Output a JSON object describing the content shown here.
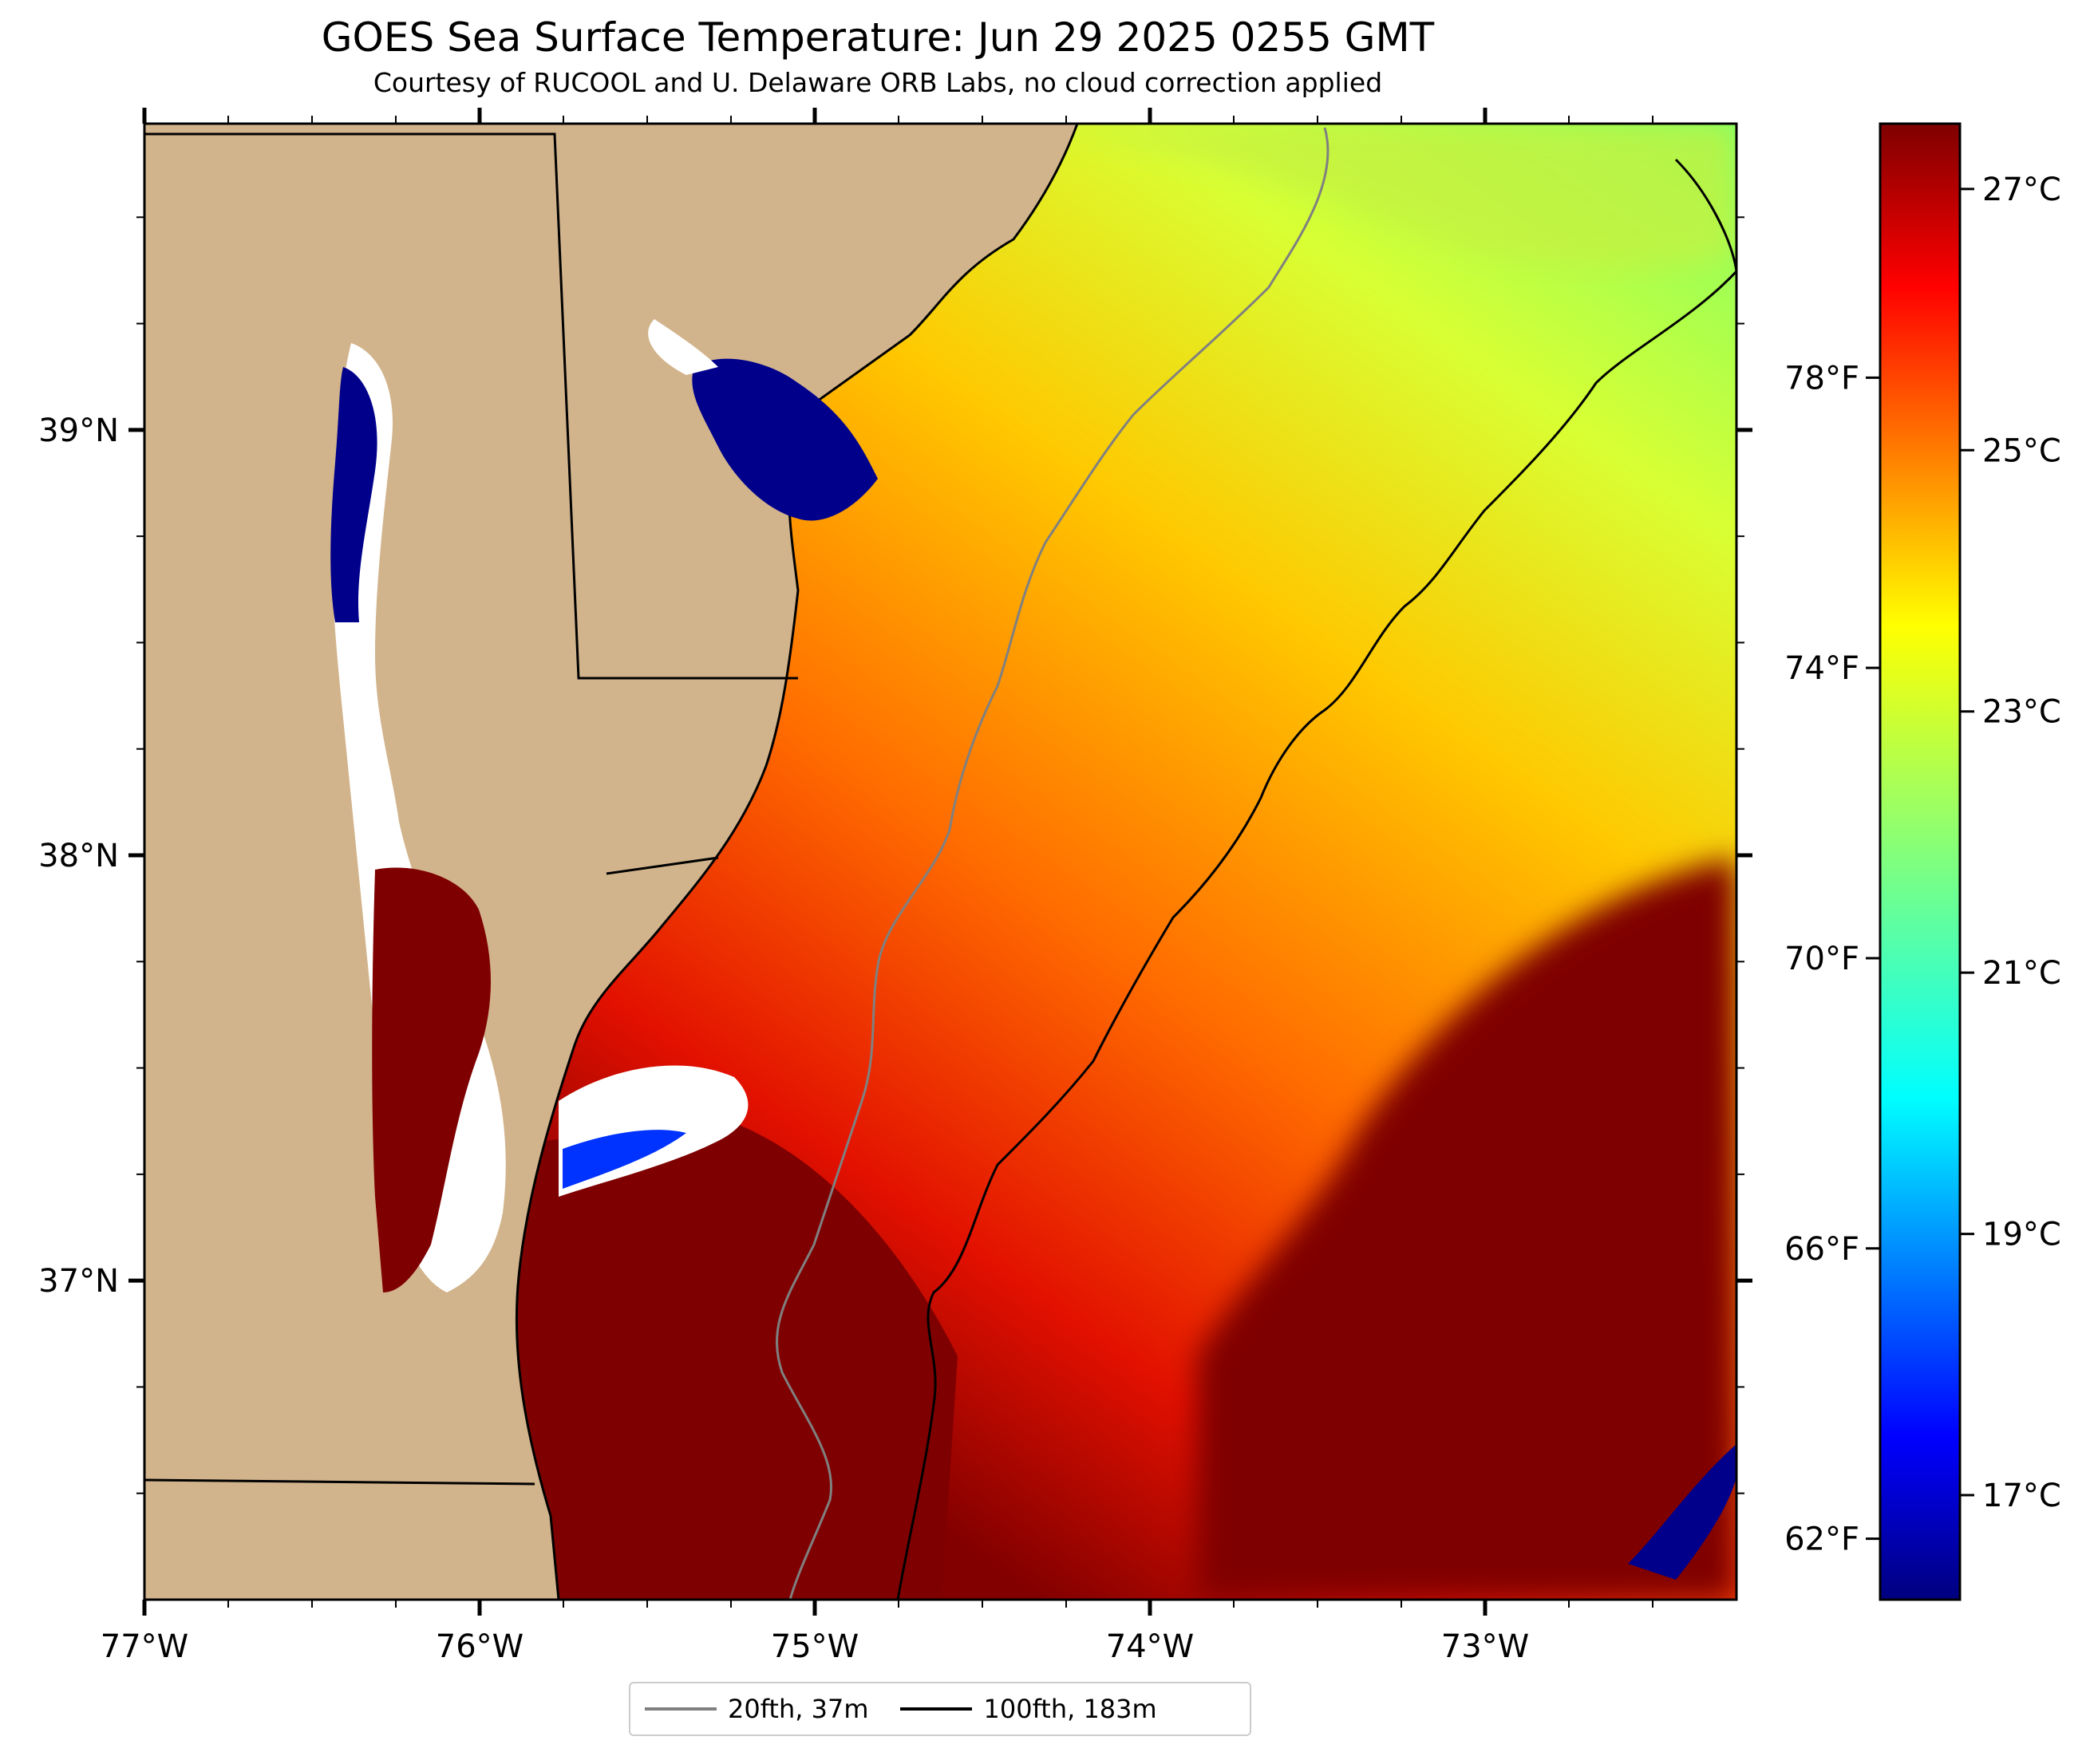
{
  "title": "GOES Sea Surface Temperature: Jun 29 2025 0255 GMT",
  "subtitle": "Courtesy of RUCOOL and U. Delaware ORB Labs, no cloud correction applied",
  "map": {
    "lon_range": [
      -77.0,
      -72.25
    ],
    "lat_range": [
      36.25,
      39.72
    ],
    "lon_ticks": [
      "77°W",
      "76°W",
      "75°W",
      "74°W",
      "73°W"
    ],
    "lat_ticks": [
      "39°N",
      "38°N",
      "37°N"
    ],
    "land_color": "#d2b48c",
    "no_data_color": "#ffffff"
  },
  "colorbar": {
    "celsius_ticks": [
      "27°C",
      "25°C",
      "23°C",
      "21°C",
      "19°C",
      "17°C"
    ],
    "fahrenheit_ticks": [
      "78°F",
      "74°F",
      "70°F",
      "66°F",
      "62°F"
    ],
    "range_c": [
      16.2,
      27.5
    ],
    "colormap": "jet"
  },
  "legend": {
    "items": [
      {
        "label": "20fth, 37m",
        "color": "#808080"
      },
      {
        "label": "100fth, 183m",
        "color": "#000000"
      }
    ]
  }
}
